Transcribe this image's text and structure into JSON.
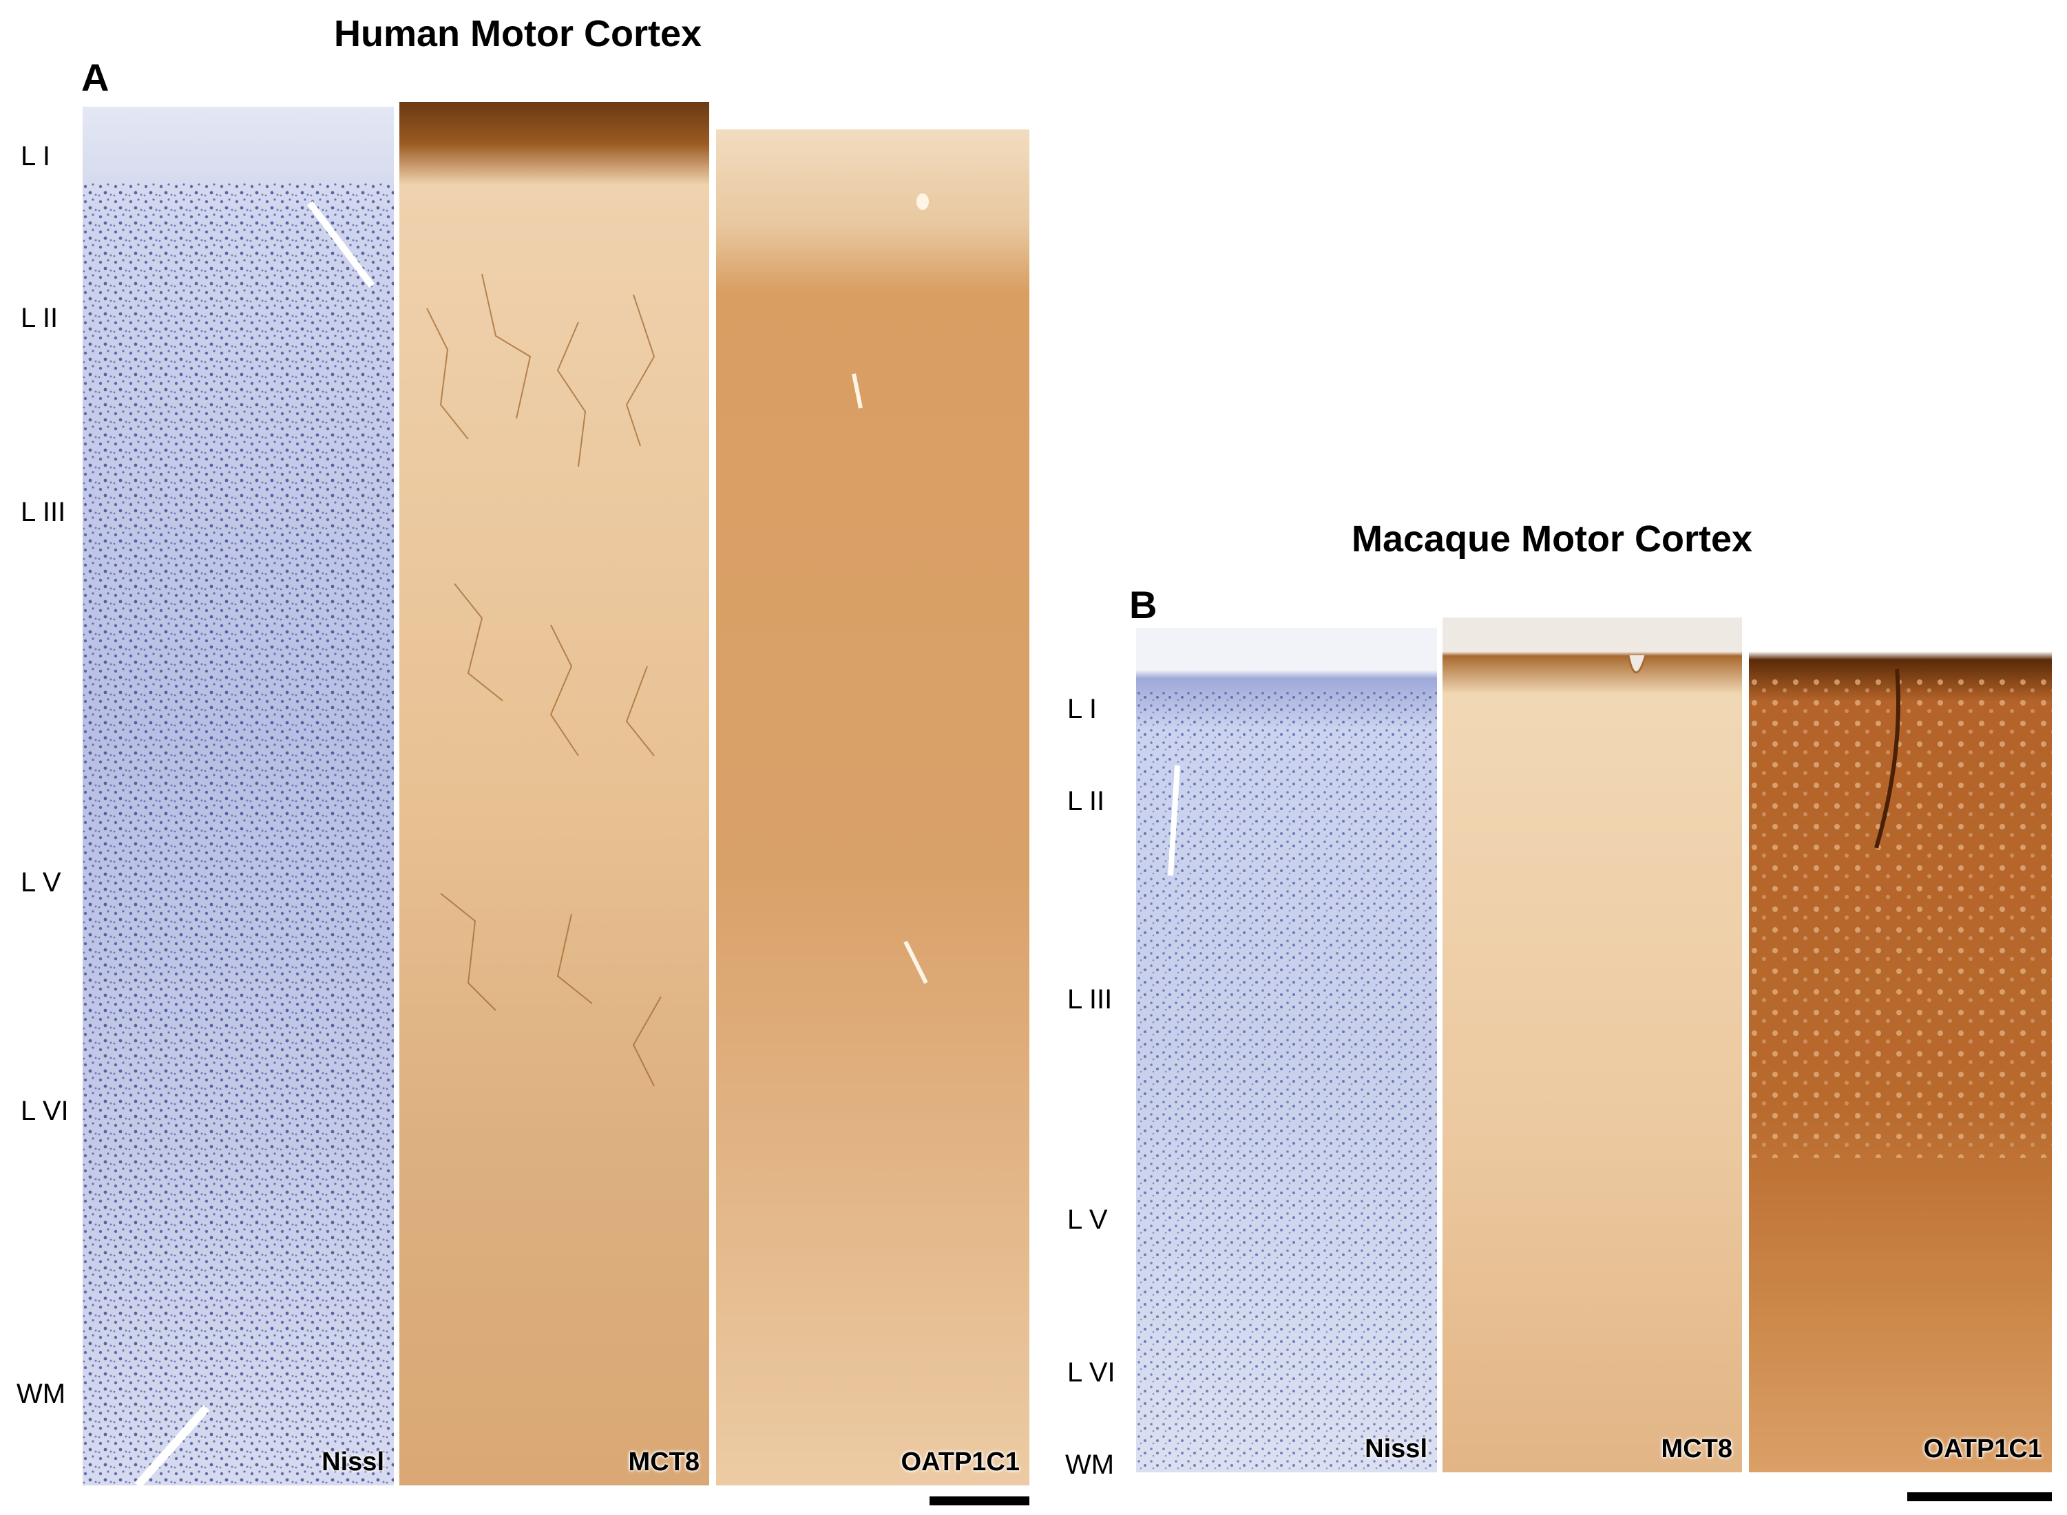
{
  "figure_a": {
    "title": "Human Motor Cortex",
    "panel_label": "A",
    "layers": [
      "L I",
      "L II",
      "L III",
      "L V",
      "L VI",
      "WM"
    ],
    "stains": [
      "Nissl",
      "MCT8",
      "OATP1C1"
    ]
  },
  "figure_b": {
    "title": "Macaque Motor Cortex",
    "panel_label": "B",
    "layers": [
      "L I",
      "L II",
      "L III",
      "L V",
      "L VI",
      "WM"
    ],
    "stains": [
      "Nissl",
      "MCT8",
      "OATP1C1"
    ]
  },
  "colors": {
    "nissl": "#3b3f9e",
    "mct8": "#b5763a",
    "oatp1c1": "#a85a1e"
  }
}
